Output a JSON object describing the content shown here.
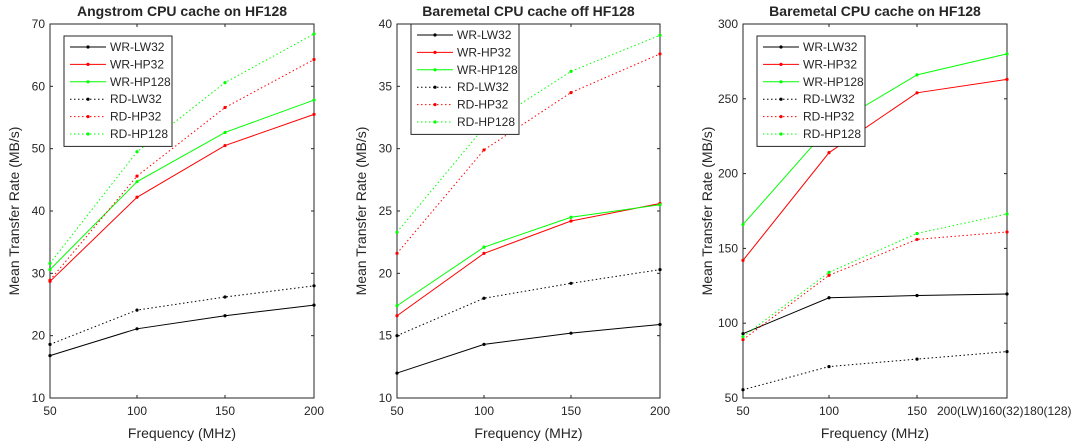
{
  "chart_data": [
    {
      "type": "line",
      "title": "Angstrom CPU cache on HF128",
      "xlabel": "Frequency (MHz)",
      "ylabel": "Mean Transfer Rate (MB/s)",
      "x": [
        50,
        100,
        150,
        200
      ],
      "xticks": [
        "50",
        "100",
        "150",
        "200"
      ],
      "xlim": [
        50,
        200
      ],
      "ylim": [
        10,
        70
      ],
      "yticks": [
        "10",
        "20",
        "30",
        "40",
        "50",
        "60",
        "70"
      ],
      "legend_position": "top-left",
      "series": [
        {
          "name": "WR-LW32",
          "color": "#000000",
          "style": "solid",
          "values": [
            16.8,
            21.1,
            23.2,
            24.9
          ]
        },
        {
          "name": "WR-HP32",
          "color": "#ff0000",
          "style": "solid",
          "values": [
            28.7,
            42.2,
            50.5,
            55.5
          ]
        },
        {
          "name": "WR-HP128",
          "color": "#00ff00",
          "style": "solid",
          "values": [
            30.6,
            44.7,
            52.6,
            57.8
          ]
        },
        {
          "name": "RD-LW32",
          "color": "#000000",
          "style": "dotted",
          "values": [
            18.6,
            24.1,
            26.2,
            28.0
          ]
        },
        {
          "name": "RD-HP32",
          "color": "#ff0000",
          "style": "dotted",
          "values": [
            28.9,
            45.6,
            56.6,
            64.3
          ]
        },
        {
          "name": "RD-HP128",
          "color": "#00ff00",
          "style": "dotted",
          "values": [
            31.6,
            49.5,
            60.6,
            68.4
          ]
        }
      ]
    },
    {
      "type": "line",
      "title": "Baremetal CPU cache off HF128",
      "xlabel": "Frequency (MHz)",
      "ylabel": "Mean Transfer Rate (MB/s)",
      "x": [
        50,
        100,
        150,
        200
      ],
      "xticks": [
        "50",
        "100",
        "150",
        "200"
      ],
      "xlim": [
        50,
        200
      ],
      "ylim": [
        10,
        40
      ],
      "yticks": [
        "10",
        "15",
        "20",
        "25",
        "30",
        "35",
        "40"
      ],
      "legend_position": "top-left",
      "series": [
        {
          "name": "WR-LW32",
          "color": "#000000",
          "style": "solid",
          "values": [
            12.0,
            14.3,
            15.2,
            15.9
          ]
        },
        {
          "name": "WR-HP32",
          "color": "#ff0000",
          "style": "solid",
          "values": [
            16.6,
            21.6,
            24.2,
            25.6
          ]
        },
        {
          "name": "WR-HP128",
          "color": "#00ff00",
          "style": "solid",
          "values": [
            17.4,
            22.1,
            24.5,
            25.5
          ]
        },
        {
          "name": "RD-LW32",
          "color": "#000000",
          "style": "dotted",
          "values": [
            15.0,
            18.0,
            19.2,
            20.3
          ]
        },
        {
          "name": "RD-HP32",
          "color": "#ff0000",
          "style": "dotted",
          "values": [
            21.6,
            29.9,
            34.5,
            37.6
          ]
        },
        {
          "name": "RD-HP128",
          "color": "#00ff00",
          "style": "dotted",
          "values": [
            23.3,
            31.7,
            36.2,
            39.1
          ]
        }
      ]
    },
    {
      "type": "line",
      "title": "Baremetal CPU cache on HF128",
      "xlabel": "Frequency (MHz)",
      "ylabel": "Mean Transfer Rate (MB/s)",
      "x": [
        50,
        100,
        150,
        180
      ],
      "xticks": [
        "50",
        "100",
        "150",
        "200(LW)160(32)180(128)"
      ],
      "xlim": [
        50,
        200
      ],
      "ylim": [
        50,
        300
      ],
      "yticks": [
        "50",
        "100",
        "150",
        "200",
        "250",
        "300"
      ],
      "legend_position": "top-left",
      "series": [
        {
          "name": "WR-LW32",
          "color": "#000000",
          "style": "solid",
          "values": [
            93,
            117,
            118.5,
            119.5
          ]
        },
        {
          "name": "WR-HP32",
          "color": "#ff0000",
          "style": "solid",
          "values": [
            142,
            214,
            254,
            263
          ]
        },
        {
          "name": "WR-HP128",
          "color": "#00ff00",
          "style": "solid",
          "values": [
            166,
            231,
            266,
            280
          ]
        },
        {
          "name": "RD-LW32",
          "color": "#000000",
          "style": "dotted",
          "values": [
            55.5,
            71,
            76,
            81
          ]
        },
        {
          "name": "RD-HP32",
          "color": "#ff0000",
          "style": "dotted",
          "values": [
            89,
            132,
            156,
            161
          ]
        },
        {
          "name": "RD-HP128",
          "color": "#00ff00",
          "style": "dotted",
          "values": [
            91,
            134,
            160,
            173
          ]
        }
      ]
    }
  ]
}
